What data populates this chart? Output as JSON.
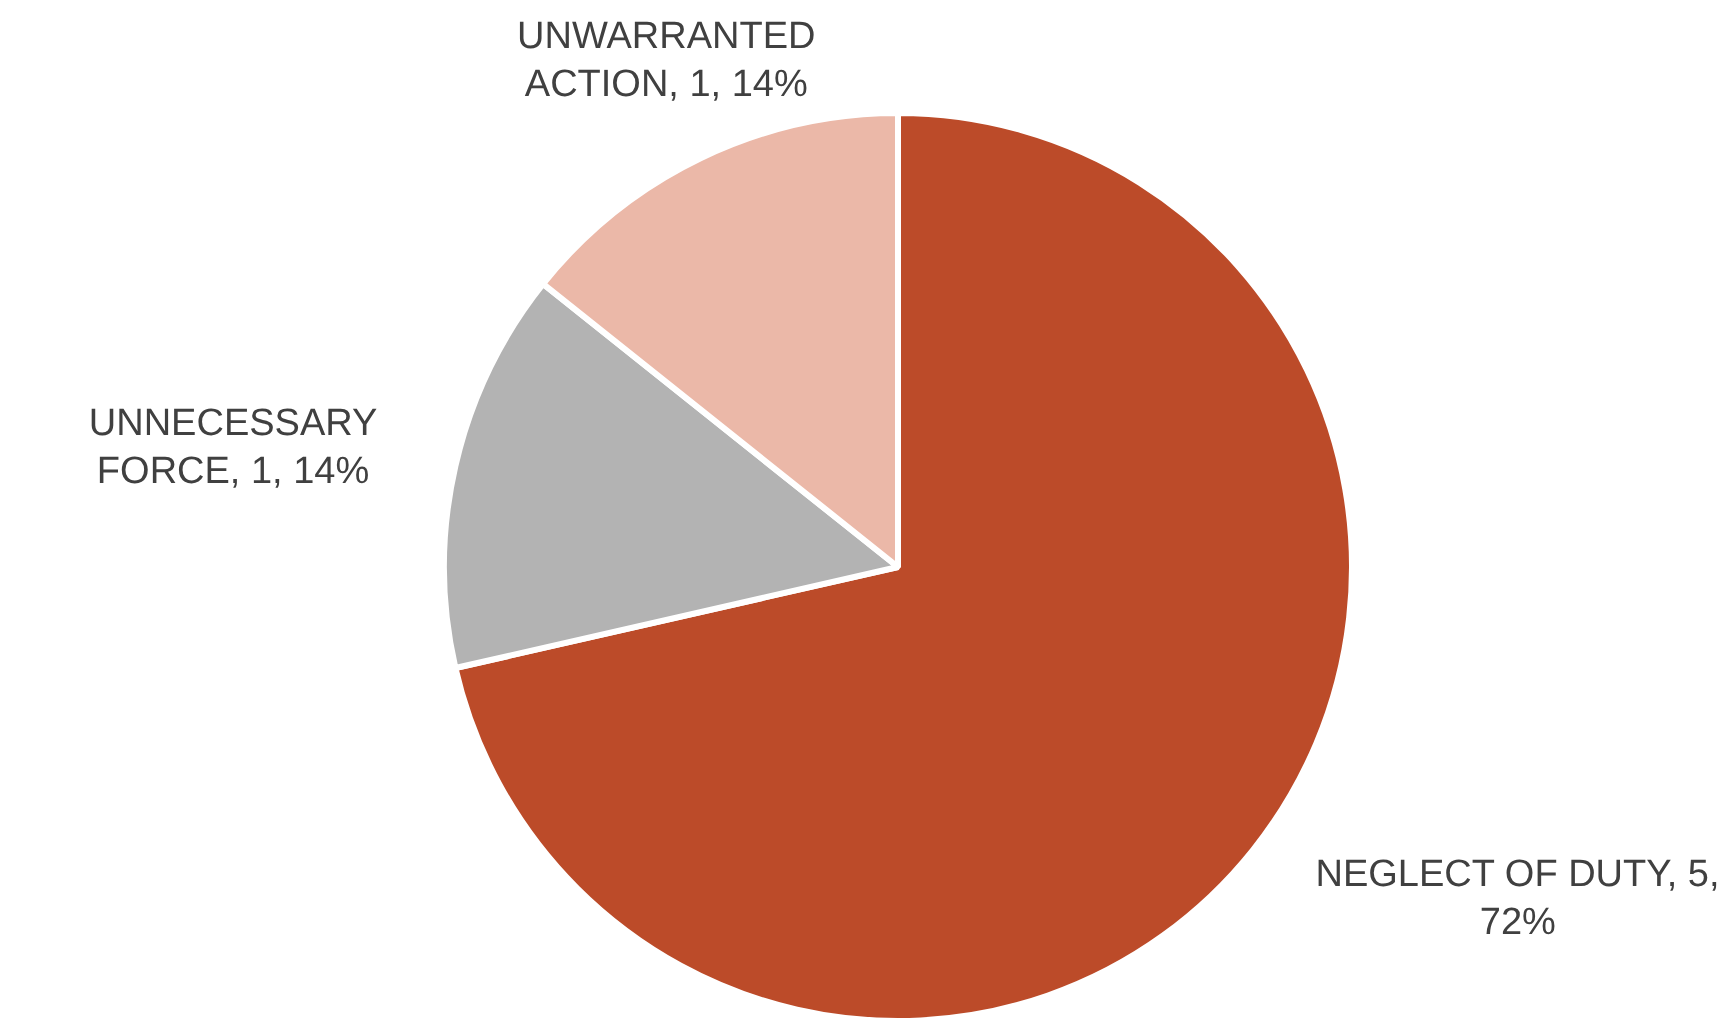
{
  "chart_data": {
    "type": "pie",
    "categories": [
      "NEGLECT OF DUTY",
      "UNNECESSARY FORCE",
      "UNWARRANTED ACTION"
    ],
    "values": [
      5,
      1,
      1
    ],
    "colors": [
      "#bc4b29",
      "#b3b3b3",
      "#ebb8a8"
    ],
    "value_labels": [
      "5, 72%",
      "1, 14%",
      "1, 14%"
    ],
    "legend": false
  }
}
